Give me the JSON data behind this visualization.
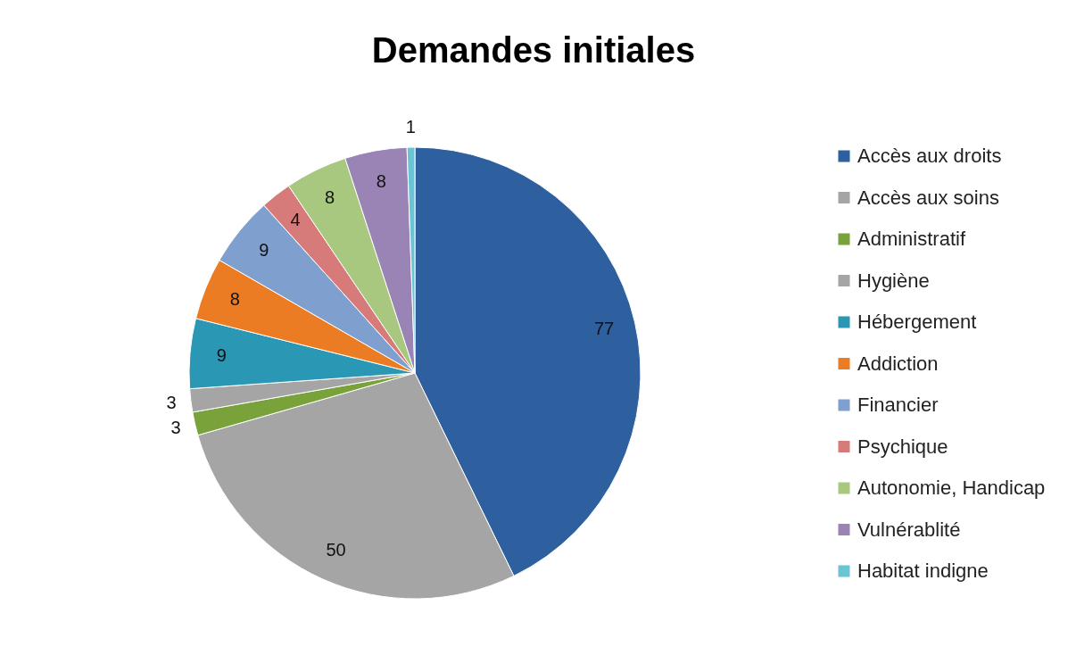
{
  "chart_data": {
    "type": "pie",
    "title": "Demandes initiales",
    "categories": [
      "Accès aux droits",
      "Accès aux soins",
      "Administratif",
      "Hygiène",
      "Hébergement",
      "Addiction",
      "Financier",
      "Psychique",
      "Autonomie, Handicap",
      "Vulnérablité",
      "Habitat indigne"
    ],
    "values": [
      77,
      50,
      3,
      3,
      9,
      8,
      9,
      4,
      8,
      8,
      1
    ],
    "colors": [
      "#2e5f9e",
      "#a5a5a5",
      "#7aa23a",
      "#a5a5a5",
      "#2a97b4",
      "#ec7c24",
      "#7f9fcf",
      "#d67b79",
      "#a8c77f",
      "#9a84b6",
      "#6bc3d6"
    ],
    "data_labels": true,
    "legend": "right"
  }
}
